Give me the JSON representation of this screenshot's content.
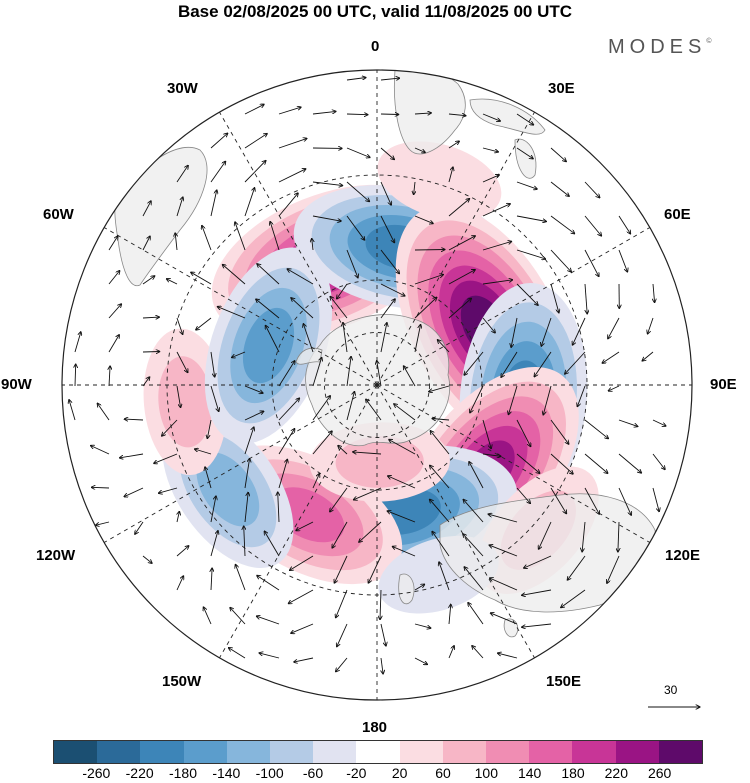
{
  "title": "Base 02/08/2025 00 UTC, valid 11/08/2025 00 UTC",
  "brand": {
    "name": "MODES",
    "mark": "©"
  },
  "longitude_labels": [
    "0",
    "30E",
    "60E",
    "90E",
    "120E",
    "150E",
    "180",
    "150W",
    "120W",
    "90W",
    "60W",
    "30W"
  ],
  "reference_vector": {
    "value": "30"
  },
  "colors": {
    "land": "#ececec",
    "coast": "#888888",
    "grid": "#222222",
    "vector": "#111111"
  },
  "colorbar": {
    "colors": [
      "#1b4f72",
      "#2b6a99",
      "#3d85b8",
      "#5b9dcc",
      "#86b6dc",
      "#b4cbe6",
      "#e1e3f1",
      "#ffffff",
      "#fbdde2",
      "#f7b6c6",
      "#f08db3",
      "#e462a6",
      "#c83597",
      "#9a1484",
      "#5e0a6a"
    ],
    "tick_labels": [
      "-260",
      "-220",
      "-180",
      "-140",
      "-100",
      "-60",
      "-20",
      "20",
      "60",
      "100",
      "140",
      "180",
      "220",
      "260"
    ]
  },
  "chart_data": {
    "type": "polar-stereographic anomaly map",
    "title": "Base 02/08/2025 00 UTC, valid 11/08/2025 00 UTC",
    "hemisphere": "south",
    "contour_levels": [
      -260,
      -220,
      -180,
      -140,
      -100,
      -60,
      -20,
      20,
      60,
      100,
      140,
      180,
      220,
      260
    ],
    "anomaly_centers": [
      {
        "name": "positive-anomaly-30W",
        "lon": -22,
        "lat": -52,
        "peak": 230
      },
      {
        "name": "negative-anomaly-10E",
        "lon": 10,
        "lat": -50,
        "peak": -190
      },
      {
        "name": "positive-anomaly-60E",
        "lon": 62,
        "lat": -55,
        "peak": 265
      },
      {
        "name": "negative-anomaly-95E",
        "lon": 95,
        "lat": -48,
        "peak": -210
      },
      {
        "name": "positive-anomaly-125E",
        "lon": 128,
        "lat": -50,
        "peak": 230
      },
      {
        "name": "negative-anomaly-170E",
        "lon": 168,
        "lat": -53,
        "peak": -210
      },
      {
        "name": "positive-anomaly-150W",
        "lon": -152,
        "lat": -48,
        "peak": 170
      },
      {
        "name": "negative-anomaly-120W",
        "lon": -125,
        "lat": -38,
        "peak": -130
      },
      {
        "name": "positive-anomaly-95W",
        "lon": -95,
        "lat": -35,
        "peak": 80
      },
      {
        "name": "negative-anomaly-70W",
        "lon": -70,
        "lat": -57,
        "peak": -170
      },
      {
        "name": "weak-positive-15E",
        "lon": 17,
        "lat": -29,
        "peak": 50
      },
      {
        "name": "weak-positive-120E-land",
        "lon": 132,
        "lat": -28,
        "peak": 90
      },
      {
        "name": "weak-negative-160E",
        "lon": 162,
        "lat": -33,
        "peak": -45
      },
      {
        "name": "positive-anomaly-170E-small",
        "lon": 178,
        "lat": -68,
        "peak": 70
      }
    ],
    "reference_vector_value": 30
  }
}
